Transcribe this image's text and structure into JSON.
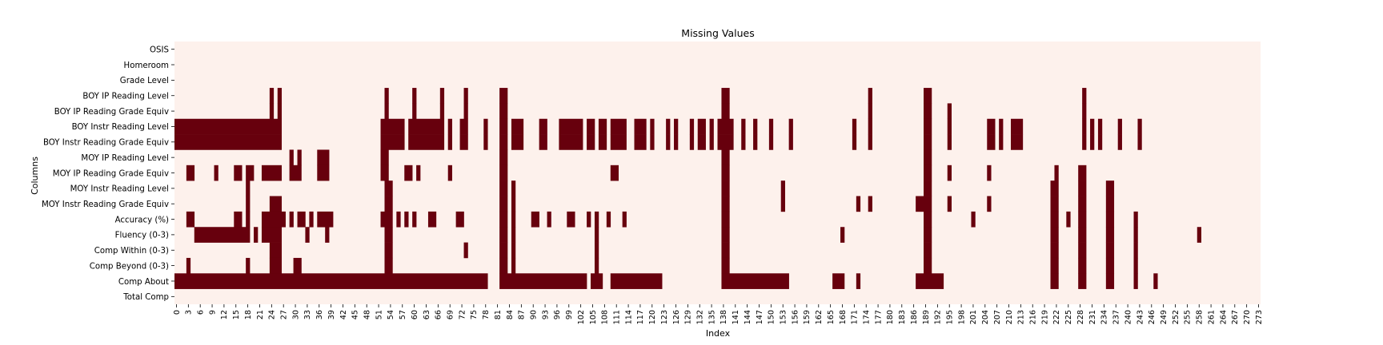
{
  "chart_data": {
    "type": "heatmap",
    "title": "Missing Values",
    "xlabel": "Index",
    "ylabel": "Columns",
    "x_range": [
      0,
      274
    ],
    "x_tick_step": 3,
    "rows": [
      "OSIS",
      "Homeroom",
      "Grade Level",
      "BOY IP Reading Level",
      "BOY IP Reading Grade Equiv",
      "BOY Instr Reading Level",
      "BOY Instr Reading Grade Equiv",
      "MOY IP Reading Level",
      "MOY IP Reading Grade Equiv",
      "MOY Instr Reading Level",
      "MOY Instr Reading Grade Equiv",
      "Accuracy (%)",
      "Fluency (0-3)",
      "Comp Within (0-3)",
      "Comp Beyond (0-3)",
      "Comp About",
      "Total Comp"
    ],
    "grid": false,
    "colors": {
      "present": "#fdf1ec",
      "missing": "#67000d"
    },
    "missing_runs": [
      [],
      [],
      [],
      [
        [
          24,
          25
        ],
        [
          26,
          27
        ],
        [
          53,
          54
        ],
        [
          60,
          61
        ],
        [
          67,
          68
        ],
        [
          73,
          74
        ],
        [
          82,
          84
        ],
        [
          138,
          140
        ],
        [
          175,
          176
        ],
        [
          189,
          191
        ],
        [
          229,
          230
        ]
      ],
      [
        [
          24,
          25
        ],
        [
          26,
          27
        ],
        [
          53,
          54
        ],
        [
          60,
          61
        ],
        [
          67,
          68
        ],
        [
          73,
          74
        ],
        [
          82,
          84
        ],
        [
          138,
          140
        ],
        [
          175,
          176
        ],
        [
          189,
          191
        ],
        [
          195,
          196
        ],
        [
          229,
          230
        ]
      ],
      [
        [
          0,
          27
        ],
        [
          52,
          58
        ],
        [
          59,
          68
        ],
        [
          69,
          70
        ],
        [
          72,
          74
        ],
        [
          78,
          79
        ],
        [
          82,
          84
        ],
        [
          85,
          88
        ],
        [
          92,
          94
        ],
        [
          97,
          103
        ],
        [
          104,
          106
        ],
        [
          107,
          109
        ],
        [
          110,
          114
        ],
        [
          116,
          119
        ],
        [
          120,
          121
        ],
        [
          124,
          125
        ],
        [
          126,
          127
        ],
        [
          130,
          131
        ],
        [
          132,
          134
        ],
        [
          135,
          136
        ],
        [
          137,
          141
        ],
        [
          143,
          144
        ],
        [
          146,
          147
        ],
        [
          150,
          151
        ],
        [
          155,
          156
        ],
        [
          171,
          172
        ],
        [
          175,
          176
        ],
        [
          189,
          191
        ],
        [
          195,
          196
        ],
        [
          205,
          207
        ],
        [
          208,
          209
        ],
        [
          211,
          214
        ],
        [
          229,
          230
        ],
        [
          231,
          232
        ],
        [
          233,
          234
        ],
        [
          238,
          239
        ],
        [
          243,
          244
        ]
      ],
      [
        [
          0,
          27
        ],
        [
          52,
          58
        ],
        [
          59,
          68
        ],
        [
          69,
          70
        ],
        [
          72,
          74
        ],
        [
          78,
          79
        ],
        [
          82,
          84
        ],
        [
          85,
          88
        ],
        [
          92,
          94
        ],
        [
          97,
          103
        ],
        [
          104,
          106
        ],
        [
          107,
          109
        ],
        [
          110,
          114
        ],
        [
          116,
          119
        ],
        [
          120,
          121
        ],
        [
          124,
          125
        ],
        [
          126,
          127
        ],
        [
          130,
          131
        ],
        [
          132,
          134
        ],
        [
          135,
          136
        ],
        [
          137,
          141
        ],
        [
          143,
          144
        ],
        [
          146,
          147
        ],
        [
          150,
          151
        ],
        [
          155,
          156
        ],
        [
          171,
          172
        ],
        [
          175,
          176
        ],
        [
          189,
          191
        ],
        [
          195,
          196
        ],
        [
          205,
          207
        ],
        [
          208,
          209
        ],
        [
          211,
          214
        ],
        [
          229,
          230
        ],
        [
          231,
          232
        ],
        [
          233,
          234
        ],
        [
          238,
          239
        ],
        [
          243,
          244
        ]
      ],
      [
        [
          29,
          30
        ],
        [
          31,
          32
        ],
        [
          36,
          39
        ],
        [
          52,
          54
        ],
        [
          82,
          84
        ],
        [
          138,
          140
        ],
        [
          189,
          191
        ]
      ],
      [
        [
          3,
          5
        ],
        [
          10,
          11
        ],
        [
          15,
          17
        ],
        [
          18,
          20
        ],
        [
          22,
          27
        ],
        [
          29,
          32
        ],
        [
          36,
          39
        ],
        [
          52,
          54
        ],
        [
          58,
          60
        ],
        [
          61,
          62
        ],
        [
          69,
          70
        ],
        [
          82,
          84
        ],
        [
          110,
          112
        ],
        [
          138,
          140
        ],
        [
          189,
          191
        ],
        [
          195,
          196
        ],
        [
          205,
          206
        ],
        [
          222,
          223
        ],
        [
          228,
          230
        ]
      ],
      [
        [
          18,
          19
        ],
        [
          53,
          55
        ],
        [
          82,
          84
        ],
        [
          85,
          86
        ],
        [
          138,
          140
        ],
        [
          153,
          154
        ],
        [
          189,
          191
        ],
        [
          221,
          223
        ],
        [
          228,
          230
        ],
        [
          235,
          237
        ]
      ],
      [
        [
          18,
          19
        ],
        [
          24,
          27
        ],
        [
          53,
          55
        ],
        [
          82,
          84
        ],
        [
          85,
          86
        ],
        [
          138,
          140
        ],
        [
          153,
          154
        ],
        [
          172,
          173
        ],
        [
          175,
          176
        ],
        [
          187,
          191
        ],
        [
          195,
          196
        ],
        [
          205,
          206
        ],
        [
          221,
          223
        ],
        [
          228,
          230
        ],
        [
          235,
          237
        ]
      ],
      [
        [
          3,
          5
        ],
        [
          15,
          17
        ],
        [
          18,
          19
        ],
        [
          22,
          24
        ],
        [
          24,
          28
        ],
        [
          29,
          30
        ],
        [
          31,
          33
        ],
        [
          34,
          35
        ],
        [
          36,
          40
        ],
        [
          52,
          55
        ],
        [
          56,
          57
        ],
        [
          58,
          59
        ],
        [
          60,
          61
        ],
        [
          64,
          66
        ],
        [
          71,
          73
        ],
        [
          82,
          84
        ],
        [
          85,
          86
        ],
        [
          90,
          92
        ],
        [
          94,
          95
        ],
        [
          99,
          101
        ],
        [
          104,
          105
        ],
        [
          106,
          107
        ],
        [
          109,
          110
        ],
        [
          113,
          114
        ],
        [
          138,
          140
        ],
        [
          189,
          191
        ],
        [
          201,
          202
        ],
        [
          221,
          223
        ],
        [
          225,
          226
        ],
        [
          228,
          230
        ],
        [
          235,
          237
        ],
        [
          242,
          243
        ]
      ],
      [
        [
          5,
          19
        ],
        [
          20,
          21
        ],
        [
          22,
          27
        ],
        [
          33,
          34
        ],
        [
          38,
          39
        ],
        [
          53,
          55
        ],
        [
          82,
          84
        ],
        [
          85,
          86
        ],
        [
          106,
          107
        ],
        [
          138,
          140
        ],
        [
          168,
          169
        ],
        [
          189,
          191
        ],
        [
          221,
          223
        ],
        [
          228,
          230
        ],
        [
          235,
          237
        ],
        [
          242,
          243
        ],
        [
          258,
          259
        ]
      ],
      [
        [
          24,
          27
        ],
        [
          53,
          55
        ],
        [
          73,
          74
        ],
        [
          82,
          84
        ],
        [
          85,
          86
        ],
        [
          106,
          107
        ],
        [
          138,
          140
        ],
        [
          189,
          191
        ],
        [
          221,
          223
        ],
        [
          228,
          230
        ],
        [
          235,
          237
        ],
        [
          242,
          243
        ]
      ],
      [
        [
          3,
          4
        ],
        [
          18,
          19
        ],
        [
          24,
          27
        ],
        [
          30,
          32
        ],
        [
          53,
          55
        ],
        [
          82,
          84
        ],
        [
          85,
          86
        ],
        [
          106,
          107
        ],
        [
          138,
          140
        ],
        [
          189,
          191
        ],
        [
          221,
          223
        ],
        [
          228,
          230
        ],
        [
          235,
          237
        ],
        [
          242,
          243
        ]
      ],
      [
        [
          0,
          79
        ],
        [
          82,
          104
        ],
        [
          105,
          108
        ],
        [
          110,
          123
        ],
        [
          138,
          155
        ],
        [
          166,
          169
        ],
        [
          172,
          173
        ],
        [
          187,
          194
        ],
        [
          221,
          223
        ],
        [
          228,
          230
        ],
        [
          235,
          237
        ],
        [
          242,
          243
        ],
        [
          247,
          248
        ]
      ],
      []
    ]
  }
}
